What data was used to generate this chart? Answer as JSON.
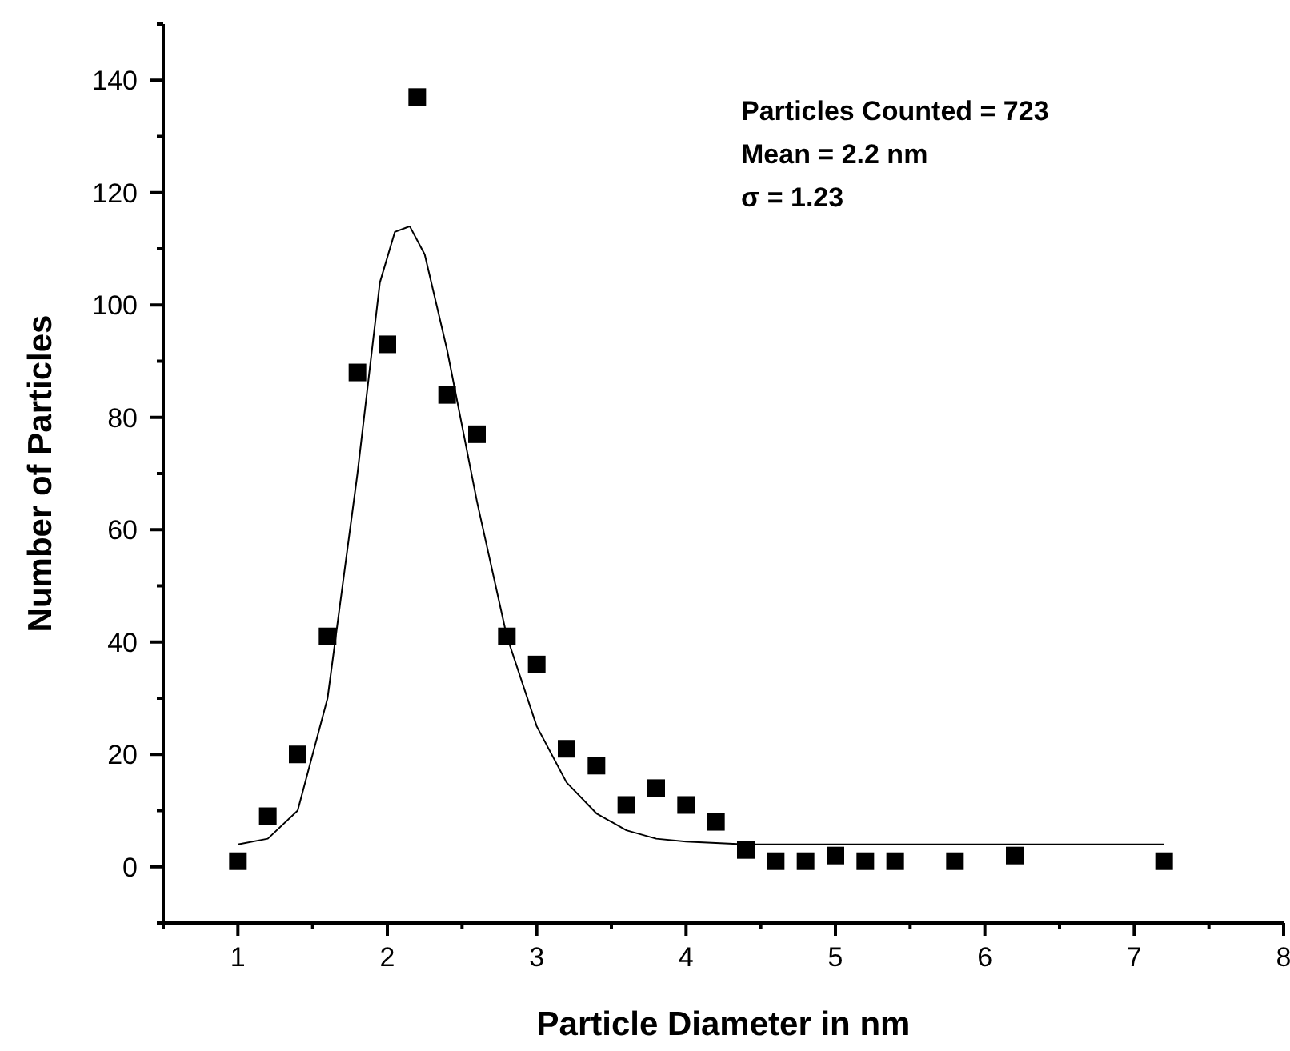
{
  "chart_data": {
    "type": "scatter",
    "xlabel": "Particle Diameter in nm",
    "ylabel": "Number of Particles",
    "annotations": [
      "Particles Counted = 723",
      "Mean = 2.2 nm",
      "σ = 1.23"
    ],
    "xlim": [
      0.5,
      8
    ],
    "ylim": [
      -10,
      150
    ],
    "xticks": [
      {
        "value": 0.5,
        "label": null
      },
      1,
      {
        "value": 1.5,
        "label": null
      },
      2,
      {
        "value": 2.5,
        "label": null
      },
      3,
      {
        "value": 3.5,
        "label": null
      },
      4,
      {
        "value": 4.5,
        "label": null
      },
      5,
      {
        "value": 5.5,
        "label": null
      },
      6,
      {
        "value": 6.5,
        "label": null
      },
      7,
      {
        "value": 7.5,
        "label": null
      },
      8
    ],
    "yticks": [
      {
        "value": -10,
        "label": null
      },
      0,
      {
        "value": 10,
        "label": null
      },
      20,
      {
        "value": 30,
        "label": null
      },
      40,
      {
        "value": 50,
        "label": null
      },
      60,
      {
        "value": 70,
        "label": null
      },
      80,
      {
        "value": 90,
        "label": null
      },
      100,
      {
        "value": 110,
        "label": null
      },
      120,
      {
        "value": 130,
        "label": null
      },
      140,
      {
        "value": 150,
        "label": null
      }
    ],
    "grid": false,
    "series": [
      {
        "type": "line",
        "color": "#000000",
        "marker": "none",
        "line_style": "solid",
        "x": [
          1.0,
          1.2,
          1.4,
          1.6,
          1.8,
          1.95,
          2.05,
          2.15,
          2.25,
          2.4,
          2.6,
          2.8,
          3.0,
          3.2,
          3.4,
          3.6,
          3.8,
          4.0,
          4.4,
          5.0,
          7.2
        ],
        "values": [
          4,
          5,
          10,
          30,
          70,
          104,
          113,
          114,
          109,
          92,
          65,
          41,
          25,
          15,
          9.5,
          6.5,
          5,
          4.5,
          4,
          4,
          4
        ]
      },
      {
        "color": "#000000",
        "marker": "square",
        "x": [
          1.0,
          1.2,
          1.4,
          1.6,
          1.8,
          2.0,
          2.2,
          2.4,
          2.6,
          2.8,
          3.0,
          3.2,
          3.4,
          3.6,
          3.8,
          4.0,
          4.2,
          4.4,
          4.6,
          4.8,
          5.0,
          5.2,
          5.4,
          5.8,
          6.2,
          7.2
        ],
        "values": [
          1,
          9,
          20,
          41,
          88,
          93,
          137,
          84,
          77,
          41,
          36,
          21,
          18,
          11,
          14,
          11,
          8,
          3,
          1,
          1,
          2,
          1,
          1,
          1,
          2,
          1
        ]
      }
    ]
  }
}
